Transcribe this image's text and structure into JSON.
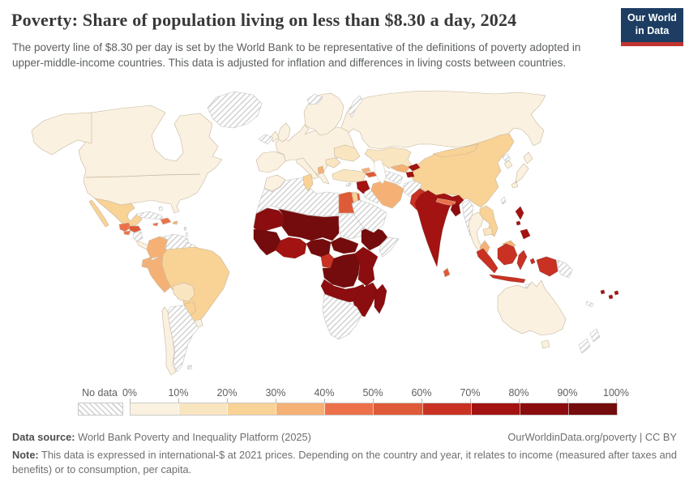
{
  "header": {
    "title": "Poverty: Share of population living on less than $8.30 a day, 2024",
    "subtitle": "The poverty line of $8.30 per day is set by the World Bank to be representative of the definitions of poverty adopted in upper-middle-income countries. This data is adjusted for inflation and differences in living costs between countries.",
    "logo": {
      "line1": "Our World",
      "line2": "in Data",
      "bg_color": "#1d3d63",
      "accent_color": "#c1342f"
    }
  },
  "chart_data": {
    "type": "choropleth_map",
    "title": "Poverty: Share of population living on less than $8.30 a day, 2024",
    "unit": "% of population",
    "projection": "world",
    "ocean_color": "#ffffff",
    "legend": {
      "no_data_label": "No data",
      "ticks": [
        "0%",
        "10%",
        "20%",
        "30%",
        "40%",
        "50%",
        "60%",
        "70%",
        "80%",
        "90%",
        "100%"
      ],
      "bins": [
        {
          "range": "0-10%",
          "color": "#FBF1E0"
        },
        {
          "range": "10-20%",
          "color": "#FAE5C1"
        },
        {
          "range": "20-30%",
          "color": "#F9D295"
        },
        {
          "range": "30-40%",
          "color": "#F5B175"
        },
        {
          "range": "40-50%",
          "color": "#EC714B"
        },
        {
          "range": "50-60%",
          "color": "#DE5A38"
        },
        {
          "range": "60-70%",
          "color": "#C93223"
        },
        {
          "range": "70-80%",
          "color": "#A31311"
        },
        {
          "range": "80-90%",
          "color": "#8B0D0F"
        },
        {
          "range": "90-100%",
          "color": "#740B0C"
        }
      ]
    },
    "regions": [
      {
        "id": "russia",
        "name": "Russia",
        "value": "0-10%"
      },
      {
        "id": "canada_usa",
        "name": "United States & Canada",
        "value": "0-10%"
      },
      {
        "id": "alaska",
        "name": "Alaska (United States)",
        "value": "0-10%"
      },
      {
        "id": "china",
        "name": "China",
        "value": "20-30%"
      },
      {
        "id": "mongolia",
        "name": "Mongolia",
        "value": "20-30%"
      },
      {
        "id": "europe_main",
        "name": "Western & Central Europe",
        "value": "0-10%"
      },
      {
        "id": "iberia",
        "name": "Spain & Portugal",
        "value": "0-10%"
      },
      {
        "id": "italy",
        "name": "Italy",
        "value": "0-10%"
      },
      {
        "id": "scandinavia",
        "name": "Scandinavia & Finland",
        "value": "0-10%"
      },
      {
        "id": "uk",
        "name": "United Kingdom",
        "value": "0-10%"
      },
      {
        "id": "ireland",
        "name": "Ireland",
        "value": "0-10%"
      },
      {
        "id": "ukraine",
        "name": "Ukraine",
        "value": "10-20%"
      },
      {
        "id": "romania_moldova",
        "name": "Romania & Moldova",
        "value": "10-20%"
      },
      {
        "id": "balkans_orange",
        "name": "Albania & North Macedonia",
        "value": "30-40%"
      },
      {
        "id": "greenland",
        "name": "Greenland",
        "value": "No data"
      },
      {
        "id": "iceland",
        "name": "Iceland",
        "value": "No data"
      },
      {
        "id": "svalbard",
        "name": "Svalbard",
        "value": "No data"
      },
      {
        "id": "novaya_zemlya",
        "name": "Novaya Zemlya",
        "value": "No data"
      },
      {
        "id": "mexico",
        "name": "Mexico",
        "value": "20-30%"
      },
      {
        "id": "baja",
        "name": "Baja California (Mexico)",
        "value": "20-30%"
      },
      {
        "id": "guatemala",
        "name": "Guatemala",
        "value": "40-50%"
      },
      {
        "id": "el_salvador",
        "name": "El Salvador",
        "value": "40-50%"
      },
      {
        "id": "honduras",
        "name": "Honduras",
        "value": "50-60%"
      },
      {
        "id": "nicaragua",
        "name": "Nicaragua",
        "value": "No data"
      },
      {
        "id": "costa_rica_panama",
        "name": "Costa Rica & Panama",
        "value": "0-10%"
      },
      {
        "id": "cuba",
        "name": "Cuba",
        "value": "No data"
      },
      {
        "id": "bahamas",
        "name": "Bahamas",
        "value": "No data"
      },
      {
        "id": "jamaica",
        "name": "Jamaica",
        "value": "40-50%"
      },
      {
        "id": "hispaniola",
        "name": "Haiti & Dominican Republic",
        "value": "40-50%"
      },
      {
        "id": "puerto_rico",
        "name": "Puerto Rico",
        "value": "30-40%"
      },
      {
        "id": "lesser_antilles",
        "name": "Lesser Antilles",
        "value": "No data"
      },
      {
        "id": "colombia",
        "name": "Colombia",
        "value": "30-40%"
      },
      {
        "id": "venezuela",
        "name": "Venezuela",
        "value": "No data"
      },
      {
        "id": "guyanas",
        "name": "Guyana & Suriname",
        "value": "No data"
      },
      {
        "id": "ecuador",
        "name": "Ecuador",
        "value": "30-40%"
      },
      {
        "id": "peru",
        "name": "Peru",
        "value": "30-40%"
      },
      {
        "id": "brazil",
        "name": "Brazil",
        "value": "20-30%"
      },
      {
        "id": "bolivia",
        "name": "Bolivia",
        "value": "10-20%"
      },
      {
        "id": "paraguay",
        "name": "Paraguay",
        "value": "20-30%"
      },
      {
        "id": "uruguay",
        "name": "Uruguay",
        "value": "0-10%"
      },
      {
        "id": "argentina",
        "name": "Argentina",
        "value": "No data"
      },
      {
        "id": "chile",
        "name": "Chile",
        "value": "0-10%"
      },
      {
        "id": "falklands",
        "name": "Falkland Islands",
        "value": "No data"
      },
      {
        "id": "morocco",
        "name": "Morocco",
        "value": "0-10%"
      },
      {
        "id": "algeria_libya_wsahara",
        "name": "Algeria, Libya & Western Sahara",
        "value": "No data"
      },
      {
        "id": "tunisia",
        "name": "Tunisia",
        "value": "20-30%"
      },
      {
        "id": "egypt",
        "name": "Egypt",
        "value": "50-60%"
      },
      {
        "id": "mauritania_sahel_west",
        "name": "Mauritania",
        "value": "80-90%"
      },
      {
        "id": "mali_niger_chad",
        "name": "Mali, Niger & Chad",
        "value": "90-100%"
      },
      {
        "id": "senegal_guinea",
        "name": "Senegal & Guinea",
        "value": "90-100%"
      },
      {
        "id": "ghana_ivory",
        "name": "Côte d'Ivoire & Ghana",
        "value": "70-80%"
      },
      {
        "id": "nigeria",
        "name": "Nigeria",
        "value": "90-100%"
      },
      {
        "id": "cameroon_gabon",
        "name": "Cameroon",
        "value": "60-70%"
      },
      {
        "id": "sudan",
        "name": "Sudan",
        "value": "No data"
      },
      {
        "id": "south_sudan_car",
        "name": "South Sudan & Central African Republic",
        "value": "90-100%"
      },
      {
        "id": "ethiopia",
        "name": "Ethiopia",
        "value": "90-100%"
      },
      {
        "id": "somalia",
        "name": "Somalia",
        "value": "No data"
      },
      {
        "id": "drc",
        "name": "Democratic Republic of Congo",
        "value": "90-100%"
      },
      {
        "id": "kenya_tanzania",
        "name": "Uganda, Kenya & Tanzania",
        "value": "80-90%"
      },
      {
        "id": "angola_zambia",
        "name": "Angola & Zambia",
        "value": "80-90%"
      },
      {
        "id": "mozambique_zimbabwe",
        "name": "Zimbabwe, Malawi & Mozambique",
        "value": "80-90%"
      },
      {
        "id": "southern_africa",
        "name": "Namibia, Botswana & South Africa",
        "value": "No data"
      },
      {
        "id": "madagascar",
        "name": "Madagascar",
        "value": "80-90%"
      },
      {
        "id": "turkey",
        "name": "Turkey",
        "value": "10-20%"
      },
      {
        "id": "cyprus",
        "name": "Cyprus",
        "value": "No data"
      },
      {
        "id": "syria",
        "name": "Syria",
        "value": "70-80%"
      },
      {
        "id": "israel_jordan",
        "name": "Israel & Jordan",
        "value": "20-30%"
      },
      {
        "id": "iraq",
        "name": "Iraq",
        "value": "No data"
      },
      {
        "id": "saudi_peninsula",
        "name": "Arabian Peninsula",
        "value": "No data"
      },
      {
        "id": "georgia",
        "name": "Georgia",
        "value": "30-40%"
      },
      {
        "id": "armenia_azerbaijan",
        "name": "Armenia & Azerbaijan",
        "value": "50-60%"
      },
      {
        "id": "iran",
        "name": "Iran",
        "value": "30-40%"
      },
      {
        "id": "kazakhstan",
        "name": "Kazakhstan",
        "value": "10-20%"
      },
      {
        "id": "uzbekistan",
        "name": "Uzbekistan",
        "value": "30-40%"
      },
      {
        "id": "turkmenistan",
        "name": "Turkmenistan",
        "value": "No data"
      },
      {
        "id": "kyrgyzstan",
        "name": "Kyrgyzstan",
        "value": "70-80%"
      },
      {
        "id": "tajikistan",
        "name": "Tajikistan",
        "value": "70-80%"
      },
      {
        "id": "afghanistan",
        "name": "Afghanistan",
        "value": "No data"
      },
      {
        "id": "pakistan",
        "name": "Pakistan",
        "value": "60-70%"
      },
      {
        "id": "india",
        "name": "India",
        "value": "70-80%"
      },
      {
        "id": "nepal_bhutan",
        "name": "Nepal",
        "value": "40-50%"
      },
      {
        "id": "bangladesh",
        "name": "Bangladesh",
        "value": "80-90%"
      },
      {
        "id": "sri_lanka",
        "name": "Sri Lanka",
        "value": "50-60%"
      },
      {
        "id": "myanmar",
        "name": "Myanmar",
        "value": "No data"
      },
      {
        "id": "thailand",
        "name": "Thailand",
        "value": "0-10%"
      },
      {
        "id": "laos_vietnam",
        "name": "Laos & Vietnam",
        "value": "20-30%"
      },
      {
        "id": "cambodia",
        "name": "Cambodia",
        "value": "10-20%"
      },
      {
        "id": "malaysia",
        "name": "Malaysia",
        "value": "30-40%"
      },
      {
        "id": "indonesia",
        "name": "Indonesia",
        "value": "60-70%"
      },
      {
        "id": "png",
        "name": "Papua New Guinea",
        "value": "No data"
      },
      {
        "id": "timor",
        "name": "Timor-Leste",
        "value": "No data"
      },
      {
        "id": "philippines",
        "name": "Philippines",
        "value": "70-80%"
      },
      {
        "id": "north_korea",
        "name": "North Korea",
        "value": "No data"
      },
      {
        "id": "south_korea",
        "name": "South Korea",
        "value": "0-10%"
      },
      {
        "id": "japan",
        "name": "Japan",
        "value": "0-10%"
      },
      {
        "id": "taiwan",
        "name": "Taiwan",
        "value": "No data"
      },
      {
        "id": "australia",
        "name": "Australia",
        "value": "0-10%"
      },
      {
        "id": "tasmania",
        "name": "Tasmania (Australia)",
        "value": "0-10%"
      },
      {
        "id": "new_zealand",
        "name": "New Zealand",
        "value": "No data"
      },
      {
        "id": "new_caledonia",
        "name": "New Caledonia",
        "value": "No data"
      },
      {
        "id": "pacific_islands",
        "name": "Vanuatu & Fiji",
        "value": "70-80%"
      }
    ]
  },
  "footer": {
    "datasource_label": "Data source:",
    "datasource_text": "World Bank Poverty and Inequality Platform (2025)",
    "rights": "OurWorldinData.org/poverty | CC BY",
    "note_label": "Note:",
    "note_text": "This data is expressed in international-$ at 2021 prices. Depending on the country and year, it relates to income (measured after taxes and benefits) or to consumption, per capita."
  }
}
